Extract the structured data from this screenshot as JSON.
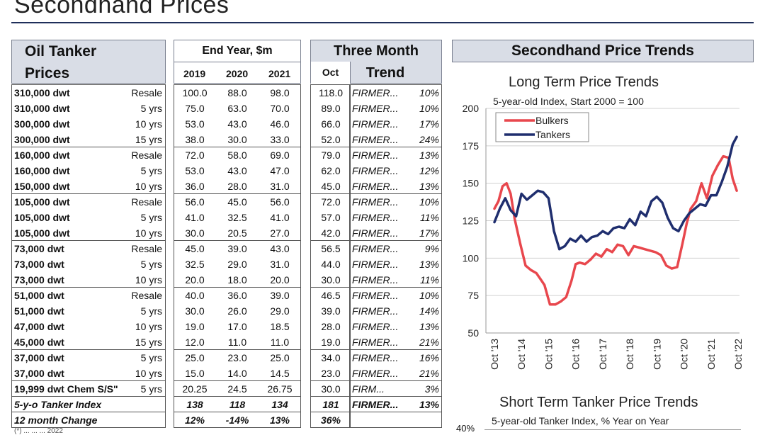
{
  "title": "Secondhand Prices",
  "table": {
    "header_line1": "Oil Tanker",
    "header_line2": "Prices",
    "end_year_label": "End Year, $m",
    "years": [
      "2019",
      "2020",
      "2021"
    ],
    "three_month_label": "Three Month",
    "oct_label": "Oct",
    "trend_label": "Trend",
    "rows": [
      {
        "name": "310,000 dwt",
        "age": "Resale",
        "v2019": "100.0",
        "v2020": "88.0",
        "v2021": "98.0",
        "oct": "118.0",
        "trend": "FIRMER...",
        "pct": "10%"
      },
      {
        "name": "310,000 dwt",
        "age": "5 yrs",
        "v2019": "75.0",
        "v2020": "63.0",
        "v2021": "70.0",
        "oct": "89.0",
        "trend": "FIRMER...",
        "pct": "10%"
      },
      {
        "name": "300,000 dwt",
        "age": "10 yrs",
        "v2019": "53.0",
        "v2020": "43.0",
        "v2021": "46.0",
        "oct": "66.0",
        "trend": "FIRMER...",
        "pct": "17%"
      },
      {
        "name": "300,000 dwt",
        "age": "15 yrs",
        "v2019": "38.0",
        "v2020": "30.0",
        "v2021": "33.0",
        "oct": "52.0",
        "trend": "FIRMER...",
        "pct": "24%"
      },
      {
        "name": "160,000 dwt",
        "age": "Resale",
        "v2019": "72.0",
        "v2020": "58.0",
        "v2021": "69.0",
        "oct": "79.0",
        "trend": "FIRMER...",
        "pct": "13%"
      },
      {
        "name": "160,000 dwt",
        "age": "5 yrs",
        "v2019": "53.0",
        "v2020": "43.0",
        "v2021": "47.0",
        "oct": "62.0",
        "trend": "FIRMER...",
        "pct": "12%"
      },
      {
        "name": "150,000 dwt",
        "age": "10 yrs",
        "v2019": "36.0",
        "v2020": "28.0",
        "v2021": "31.0",
        "oct": "45.0",
        "trend": "FIRMER...",
        "pct": "13%"
      },
      {
        "name": "105,000 dwt",
        "age": "Resale",
        "v2019": "56.0",
        "v2020": "45.0",
        "v2021": "56.0",
        "oct": "72.0",
        "trend": "FIRMER...",
        "pct": "10%"
      },
      {
        "name": "105,000 dwt",
        "age": "5 yrs",
        "v2019": "41.0",
        "v2020": "32.5",
        "v2021": "41.0",
        "oct": "57.0",
        "trend": "FIRMER...",
        "pct": "11%"
      },
      {
        "name": "105,000 dwt",
        "age": "10 yrs",
        "v2019": "30.0",
        "v2020": "20.5",
        "v2021": "27.0",
        "oct": "42.0",
        "trend": "FIRMER...",
        "pct": "17%"
      },
      {
        "name": "73,000 dwt",
        "age": "Resale",
        "v2019": "45.0",
        "v2020": "39.0",
        "v2021": "43.0",
        "oct": "56.5",
        "trend": "FIRMER...",
        "pct": "9%"
      },
      {
        "name": "73,000 dwt",
        "age": "5 yrs",
        "v2019": "32.5",
        "v2020": "29.0",
        "v2021": "31.0",
        "oct": "44.0",
        "trend": "FIRMER...",
        "pct": "13%"
      },
      {
        "name": "73,000 dwt",
        "age": "10 yrs",
        "v2019": "20.0",
        "v2020": "18.0",
        "v2021": "20.0",
        "oct": "30.0",
        "trend": "FIRMER...",
        "pct": "11%"
      },
      {
        "name": "51,000 dwt",
        "age": "Resale",
        "v2019": "40.0",
        "v2020": "36.0",
        "v2021": "39.0",
        "oct": "46.5",
        "trend": "FIRMER...",
        "pct": "10%"
      },
      {
        "name": "51,000 dwt",
        "age": "5 yrs",
        "v2019": "30.0",
        "v2020": "26.0",
        "v2021": "29.0",
        "oct": "39.0",
        "trend": "FIRMER...",
        "pct": "14%"
      },
      {
        "name": "47,000 dwt",
        "age": "10 yrs",
        "v2019": "19.0",
        "v2020": "17.0",
        "v2021": "18.5",
        "oct": "28.0",
        "trend": "FIRMER...",
        "pct": "13%"
      },
      {
        "name": "45,000 dwt",
        "age": "15 yrs",
        "v2019": "12.0",
        "v2020": "11.0",
        "v2021": "11.0",
        "oct": "19.0",
        "trend": "FIRMER...",
        "pct": "21%"
      },
      {
        "name": "37,000 dwt",
        "age": "5 yrs",
        "v2019": "25.0",
        "v2020": "23.0",
        "v2021": "25.0",
        "oct": "34.0",
        "trend": "FIRMER...",
        "pct": "16%"
      },
      {
        "name": "37,000 dwt",
        "age": "10 yrs",
        "v2019": "15.0",
        "v2020": "14.0",
        "v2021": "14.5",
        "oct": "23.0",
        "trend": "FIRMER...",
        "pct": "21%"
      },
      {
        "name": "19,999 dwt Chem S/S\"",
        "age": "5 yrs",
        "v2019": "20.25",
        "v2020": "24.5",
        "v2021": "26.75",
        "oct": "30.0",
        "trend": "FIRM...",
        "pct": "3%"
      },
      {
        "name": "5-y-o Tanker Index",
        "age": "",
        "v2019": "138",
        "v2020": "118",
        "v2021": "134",
        "oct": "181",
        "trend": "FIRMER...",
        "pct": "13%"
      },
      {
        "name": "12 month Change",
        "age": "",
        "v2019": "12%",
        "v2020": "-14%",
        "v2021": "13%",
        "oct": "36%",
        "trend": "",
        "pct": ""
      }
    ],
    "footnote": "(*) ... ... ... 2022"
  },
  "chart_panel_title": "Secondhand Price Trends",
  "chart_data": [
    {
      "type": "line",
      "title": "Long Term Price Trends",
      "subtitle": "5-year-old Index, Start 2000 = 100",
      "ylim": [
        50,
        200
      ],
      "yticks": [
        "50",
        "75",
        "100",
        "125",
        "150",
        "175",
        "200"
      ],
      "xticks": [
        "Oct '13",
        "Oct '14",
        "Oct '15",
        "Oct '16",
        "Oct '17",
        "Oct '18",
        "Oct '19",
        "Oct '20",
        "Oct '21",
        "Oct '22"
      ],
      "x_range": [
        2013.75,
        2022.75
      ],
      "legend": "top-left",
      "series": [
        {
          "name": "Bulkers",
          "color": "#e8474d",
          "x": [
            2013.75,
            2013.9,
            2014.05,
            2014.2,
            2014.35,
            2014.5,
            2014.7,
            2014.9,
            2015.1,
            2015.3,
            2015.45,
            2015.6,
            2015.8,
            2016.0,
            2016.2,
            2016.4,
            2016.6,
            2016.75,
            2016.9,
            2017.1,
            2017.3,
            2017.5,
            2017.7,
            2017.9,
            2018.1,
            2018.3,
            2018.5,
            2018.7,
            2018.9,
            2019.1,
            2019.3,
            2019.5,
            2019.7,
            2019.9,
            2020.1,
            2020.3,
            2020.5,
            2020.7,
            2020.85,
            2021.0,
            2021.2,
            2021.4,
            2021.6,
            2021.8,
            2022.0,
            2022.2,
            2022.4,
            2022.55,
            2022.7
          ],
          "values": [
            133,
            138,
            148,
            150,
            143,
            126,
            110,
            95,
            92,
            90,
            86,
            82,
            69,
            69,
            71,
            74,
            85,
            96,
            97,
            96,
            99,
            103,
            101,
            106,
            104,
            109,
            108,
            102,
            108,
            107,
            106,
            105,
            104,
            102,
            95,
            93,
            94,
            110,
            123,
            133,
            138,
            150,
            140,
            155,
            162,
            168,
            167,
            153,
            145
          ]
        },
        {
          "name": "Tankers",
          "color": "#1f2e6e",
          "x": [
            2013.75,
            2013.95,
            2014.15,
            2014.35,
            2014.55,
            2014.75,
            2014.95,
            2015.15,
            2015.35,
            2015.55,
            2015.75,
            2015.95,
            2016.15,
            2016.35,
            2016.55,
            2016.75,
            2016.95,
            2017.15,
            2017.35,
            2017.55,
            2017.75,
            2017.95,
            2018.15,
            2018.35,
            2018.55,
            2018.75,
            2018.95,
            2019.15,
            2019.35,
            2019.55,
            2019.75,
            2019.95,
            2020.15,
            2020.35,
            2020.55,
            2020.75,
            2020.95,
            2021.15,
            2021.35,
            2021.55,
            2021.75,
            2021.95,
            2022.15,
            2022.35,
            2022.55,
            2022.7
          ],
          "values": [
            124,
            133,
            140,
            132,
            128,
            143,
            139,
            142,
            145,
            144,
            140,
            118,
            106,
            108,
            113,
            111,
            115,
            111,
            114,
            115,
            118,
            116,
            120,
            121,
            120,
            126,
            122,
            131,
            128,
            138,
            141,
            137,
            127,
            120,
            118,
            125,
            130,
            133,
            136,
            135,
            142,
            142,
            151,
            161,
            176,
            181
          ]
        }
      ]
    },
    {
      "type": "line",
      "title": "Short Term Tanker Price Trends",
      "subtitle": "5-year-old Tanker Index, % Year on Year",
      "yticks": [
        "40%"
      ]
    }
  ]
}
